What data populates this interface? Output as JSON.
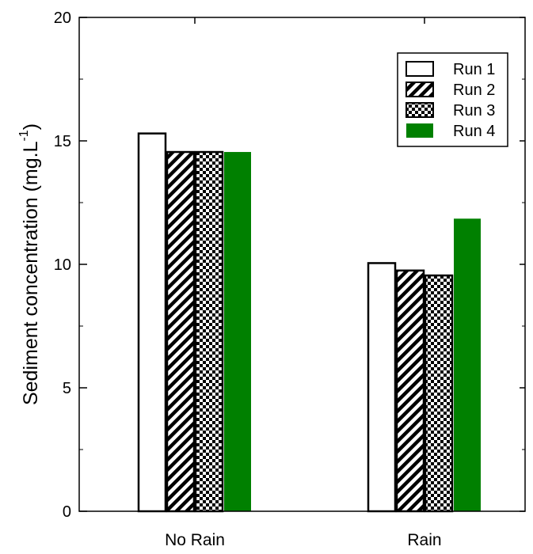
{
  "chart_data": {
    "type": "bar",
    "categories": [
      "No Rain",
      "Rain"
    ],
    "series": [
      {
        "name": "Run 1",
        "values": [
          15.3,
          10.05
        ],
        "pattern": "open",
        "color": "#ffffff"
      },
      {
        "name": "Run 2",
        "values": [
          14.55,
          9.75
        ],
        "pattern": "diagonal-hatch",
        "color": "#000000"
      },
      {
        "name": "Run 3",
        "values": [
          14.55,
          9.55
        ],
        "pattern": "checker",
        "color": "#000000"
      },
      {
        "name": "Run 4",
        "values": [
          14.55,
          11.85
        ],
        "pattern": "solid",
        "color": "#008000"
      }
    ],
    "ylabel_main": "Sediment concentration (mg.L",
    "ylabel_sup": "-1",
    "ylabel_end": ")",
    "xlabel": "",
    "title": "",
    "ylim": [
      0,
      20
    ],
    "yticks": [
      "0",
      "5",
      "10",
      "15",
      "20"
    ],
    "legend_position": "top-right",
    "grid": false
  }
}
